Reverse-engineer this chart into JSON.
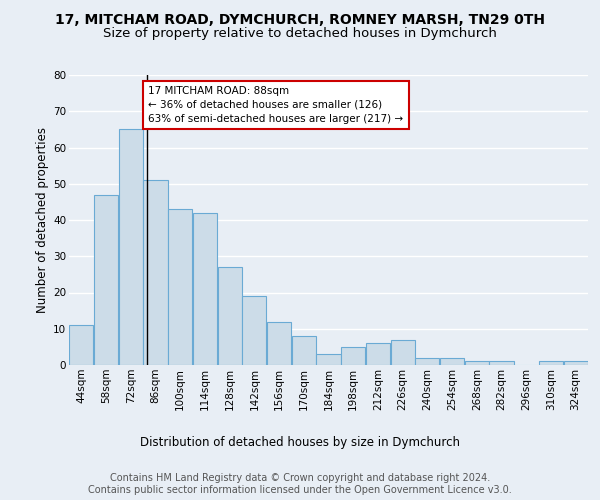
{
  "title": "17, MITCHAM ROAD, DYMCHURCH, ROMNEY MARSH, TN29 0TH",
  "subtitle": "Size of property relative to detached houses in Dymchurch",
  "xlabel": "Distribution of detached houses by size in Dymchurch",
  "ylabel": "Number of detached properties",
  "bar_values": [
    11,
    47,
    65,
    51,
    43,
    42,
    27,
    19,
    12,
    8,
    3,
    5,
    6,
    7,
    2,
    2,
    1,
    1,
    0,
    1,
    1
  ],
  "bin_labels": [
    "44sqm",
    "58sqm",
    "72sqm",
    "86sqm",
    "100sqm",
    "114sqm",
    "128sqm",
    "142sqm",
    "156sqm",
    "170sqm",
    "184sqm",
    "198sqm",
    "212sqm",
    "226sqm",
    "240sqm",
    "254sqm",
    "268sqm",
    "282sqm",
    "296sqm",
    "310sqm",
    "324sqm"
  ],
  "bin_edges": [
    44,
    58,
    72,
    86,
    100,
    114,
    128,
    142,
    156,
    170,
    184,
    198,
    212,
    226,
    240,
    254,
    268,
    282,
    296,
    310,
    324,
    338
  ],
  "bar_color": "#ccdce8",
  "bar_edge_color": "#6aaad4",
  "property_sqm": 88,
  "vline_color": "#000000",
  "annotation_line1": "17 MITCHAM ROAD: 88sqm",
  "annotation_line2": "← 36% of detached houses are smaller (126)",
  "annotation_line3": "63% of semi-detached houses are larger (217) →",
  "annotation_box_color": "#ffffff",
  "annotation_box_edge_color": "#cc0000",
  "ylim": [
    0,
    80
  ],
  "yticks": [
    0,
    10,
    20,
    30,
    40,
    50,
    60,
    70,
    80
  ],
  "footer": "Contains HM Land Registry data © Crown copyright and database right 2024.\nContains public sector information licensed under the Open Government Licence v3.0.",
  "background_color": "#e8eef5",
  "plot_background_color": "#e8eef5",
  "grid_color": "#ffffff",
  "title_fontsize": 10,
  "subtitle_fontsize": 9.5,
  "axis_label_fontsize": 8.5,
  "tick_fontsize": 7.5,
  "footer_fontsize": 7
}
